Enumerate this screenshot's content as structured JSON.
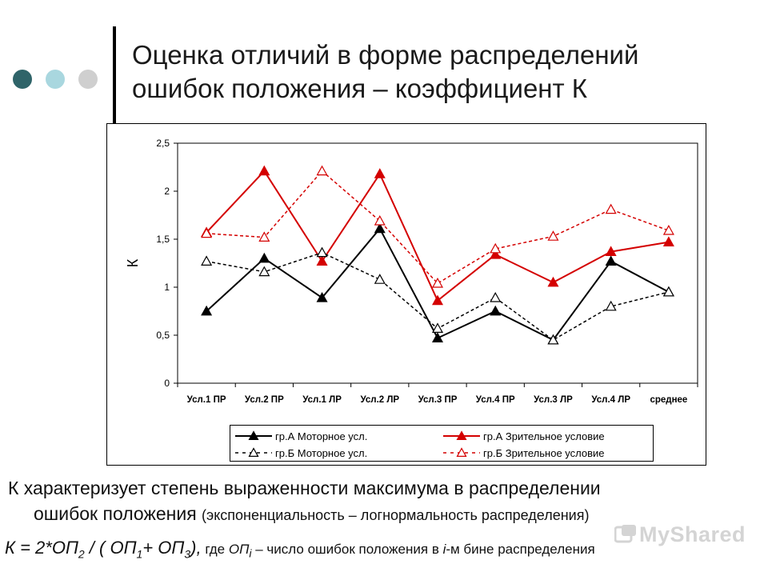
{
  "slide": {
    "title_line1": "Оценка отличий в форме распределений",
    "title_line2": "ошибок положения – коэффициент К",
    "body_line1": "К характеризует степень выраженности максимума в распределении",
    "body_line2_main": "ошибок положения",
    "body_line2_paren": "(экспоненциальность – логнормальность распределения)",
    "formula_k": "К = 2*ОП",
    "formula_sub2": "2",
    "formula_mid": " / ( ОП",
    "formula_sub1": "1",
    "formula_plus": "+ ОП",
    "formula_sub3": "3",
    "formula_close": "),",
    "formula_where": " где ",
    "formula_opi": "ОП",
    "formula_sub_i": "i",
    "formula_desc1": " – число ошибок положения в ",
    "formula_i": "i",
    "formula_desc2": "-м бине распределения",
    "watermark": "MyShared",
    "dot_colors": [
      "#2f6469",
      "#a9d7df",
      "#cfcfcf"
    ]
  },
  "chart_data": {
    "type": "line",
    "ylabel": "К",
    "xlabel": "",
    "ylim": [
      0,
      2.5
    ],
    "yticks": [
      "0",
      "0,5",
      "1",
      "1,5",
      "2",
      "2,5"
    ],
    "grid": false,
    "legend_position": "bottom",
    "categories": [
      "Усл.1 ПР",
      "Усл.2 ПР",
      "Усл.1 ЛР",
      "Усл.2 ЛР",
      "Усл.3 ПР",
      "Усл.4 ПР",
      "Усл.3 ЛР",
      "Усл.4 ЛР",
      "среднее"
    ],
    "series": [
      {
        "name": "гр.А Моторное усл.",
        "color": "#000000",
        "dash": false,
        "marker": "filled-triangle",
        "values": [
          0.75,
          1.3,
          0.89,
          1.61,
          0.47,
          0.75,
          0.45,
          1.27,
          0.95
        ]
      },
      {
        "name": "гр.А Зрительное условие",
        "color": "#d40000",
        "dash": false,
        "marker": "filled-triangle",
        "values": [
          1.57,
          2.21,
          1.27,
          2.18,
          0.86,
          1.34,
          1.05,
          1.37,
          1.47
        ]
      },
      {
        "name": "гр.Б Моторное усл.",
        "color": "#000000",
        "dash": true,
        "marker": "open-triangle",
        "values": [
          1.27,
          1.16,
          1.36,
          1.08,
          0.57,
          0.89,
          0.45,
          0.8,
          0.95
        ]
      },
      {
        "name": "гр.Б Зрительное условие",
        "color": "#d40000",
        "dash": true,
        "marker": "open-triangle",
        "values": [
          1.56,
          1.52,
          2.21,
          1.69,
          1.04,
          1.4,
          1.53,
          1.81,
          1.59
        ]
      }
    ]
  }
}
